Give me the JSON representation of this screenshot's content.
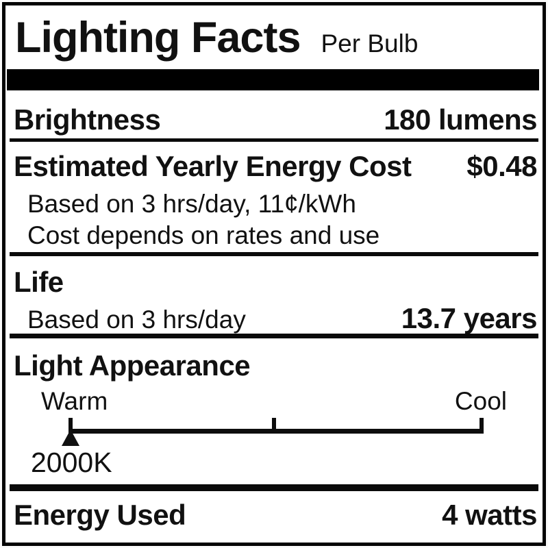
{
  "header": {
    "title": "Lighting Facts",
    "subtitle": "Per Bulb"
  },
  "rows": {
    "brightness": {
      "label": "Brightness",
      "value": "180 lumens"
    },
    "energy_cost": {
      "label": "Estimated Yearly Energy Cost",
      "value": "$0.48",
      "notes": [
        "Based on 3 hrs/day, 11¢/kWh",
        "Cost depends on rates and use"
      ]
    },
    "life": {
      "label": "Life",
      "basis": "Based on 3 hrs/day",
      "value": "13.7 years"
    },
    "light_appearance": {
      "label": "Light Appearance",
      "warm": "Warm",
      "cool": "Cool",
      "marker": "2000K",
      "marker_position": "left-end"
    },
    "energy_used": {
      "label": "Energy Used",
      "value": "4 watts"
    }
  },
  "colors": {
    "ink": "#111111",
    "paper": "#ffffff",
    "border": "#000000"
  }
}
